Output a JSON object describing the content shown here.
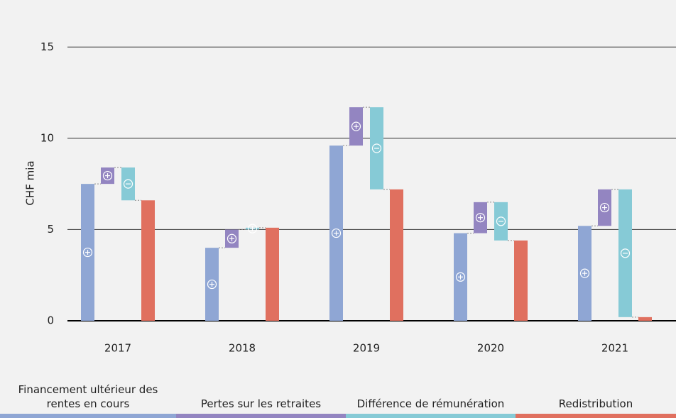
{
  "chart_data": {
    "type": "waterfall",
    "y_label": "CHF mia",
    "categories": [
      "2017",
      "2018",
      "2019",
      "2020",
      "2021"
    ],
    "series": [
      {
        "name": "Financement ultérieur des rentes en cours",
        "color": "#8fa6d4",
        "values": [
          7.5,
          4.0,
          9.6,
          4.8,
          5.2
        ]
      },
      {
        "name": "Pertes sur les retraites",
        "color": "#9385c1",
        "values": [
          0.9,
          1.0,
          2.1,
          1.7,
          2.0
        ]
      },
      {
        "name": "Différence de rémunération",
        "color": "#86cad6",
        "values": [
          -1.8,
          0.1,
          -4.5,
          -2.1,
          -7.0
        ]
      },
      {
        "name": "Redistribution",
        "color": "#e0705f",
        "values": [
          6.6,
          5.1,
          7.2,
          4.4,
          0.2
        ]
      }
    ],
    "ylim": [
      0,
      16.8
    ],
    "yticks": [
      0,
      5,
      10,
      15
    ],
    "grid": true
  }
}
